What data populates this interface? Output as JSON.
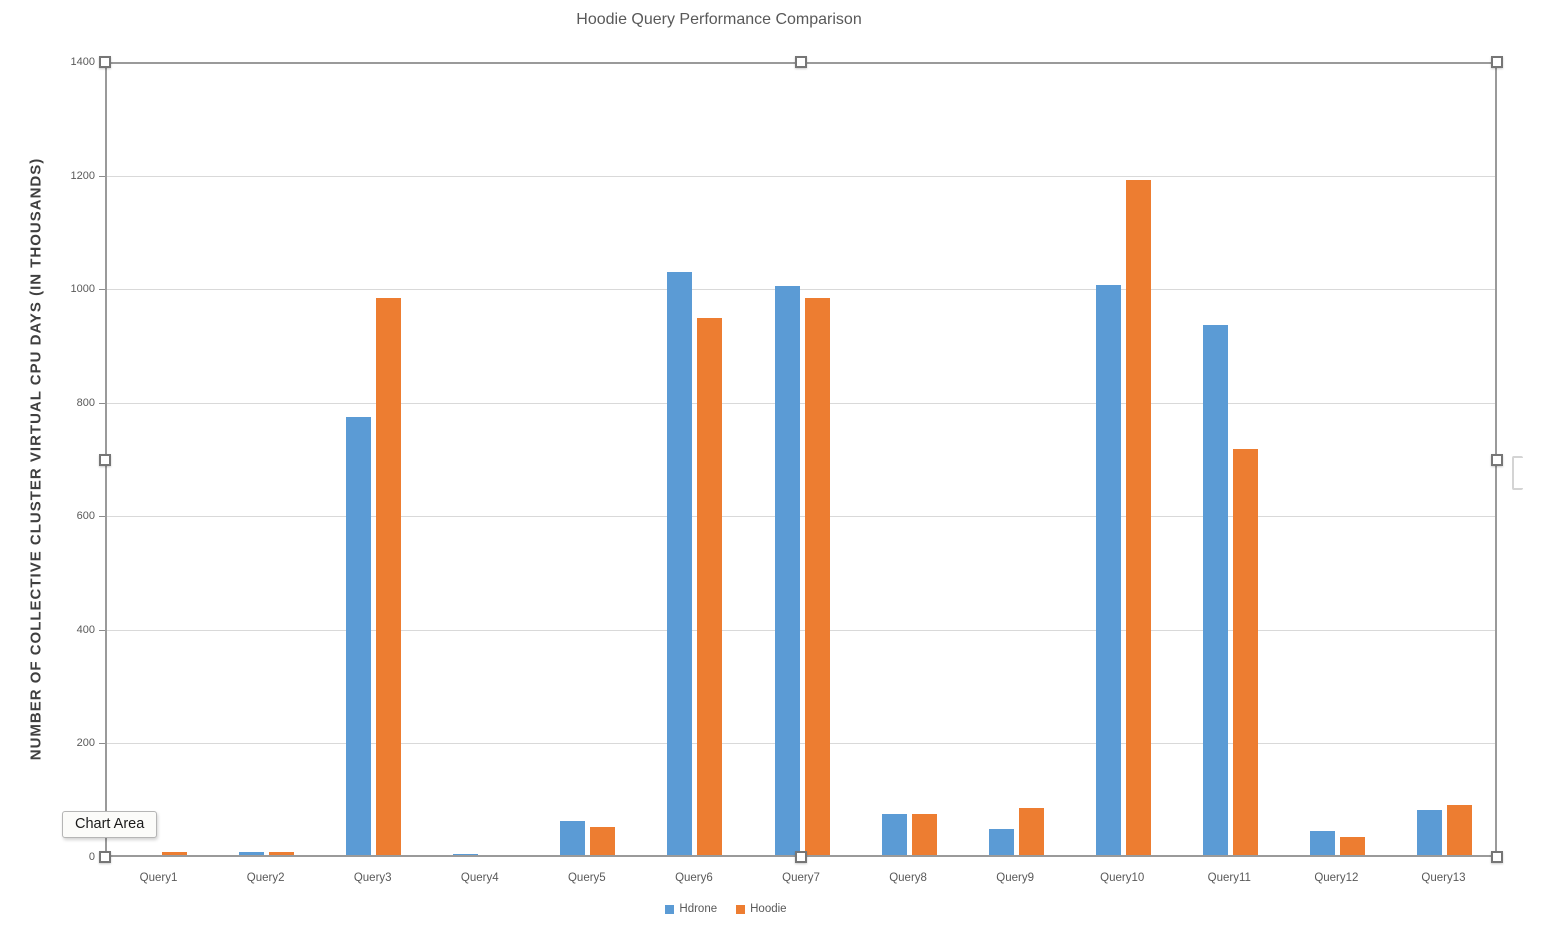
{
  "title": "Hoodie Query Performance Comparison",
  "tooltip": {
    "label": "Chart Area"
  },
  "chart_data": {
    "type": "bar",
    "title": "Hoodie Query Performance Comparison",
    "xlabel": "",
    "ylabel": "NUMBER OF COLLECTIVE CLUSTER VIRTUAL CPU DAYS (IN THOUSANDS)",
    "categories": [
      "Query1",
      "Query2",
      "Query3",
      "Query4",
      "Query5",
      "Query6",
      "Query7",
      "Query8",
      "Query9",
      "Query10",
      "Query11",
      "Query12",
      "Query13"
    ],
    "series": [
      {
        "name": "Hdrone",
        "color": "#5B9BD5",
        "values": [
          4,
          9,
          775,
          5,
          63,
          1030,
          1005,
          75,
          49,
          1007,
          936,
          45,
          82
        ]
      },
      {
        "name": "Hoodie",
        "color": "#ED7D31",
        "values": [
          8,
          8,
          985,
          4,
          52,
          950,
          985,
          75,
          86,
          1193,
          718,
          36,
          91
        ]
      }
    ],
    "ylim": [
      0,
      1400
    ],
    "yticks": [
      0,
      200,
      400,
      600,
      800,
      1000,
      1200,
      1400
    ],
    "grid": true,
    "legend_position": "bottom",
    "selection": "chart-area-selected"
  },
  "colors": {
    "hdrone_blue": "#5B9BD5",
    "hoodie_orange": "#ED7D31",
    "gridline": "#d9d9d9",
    "axis_text": "#595959",
    "selection_border": "#9a9a9a"
  }
}
